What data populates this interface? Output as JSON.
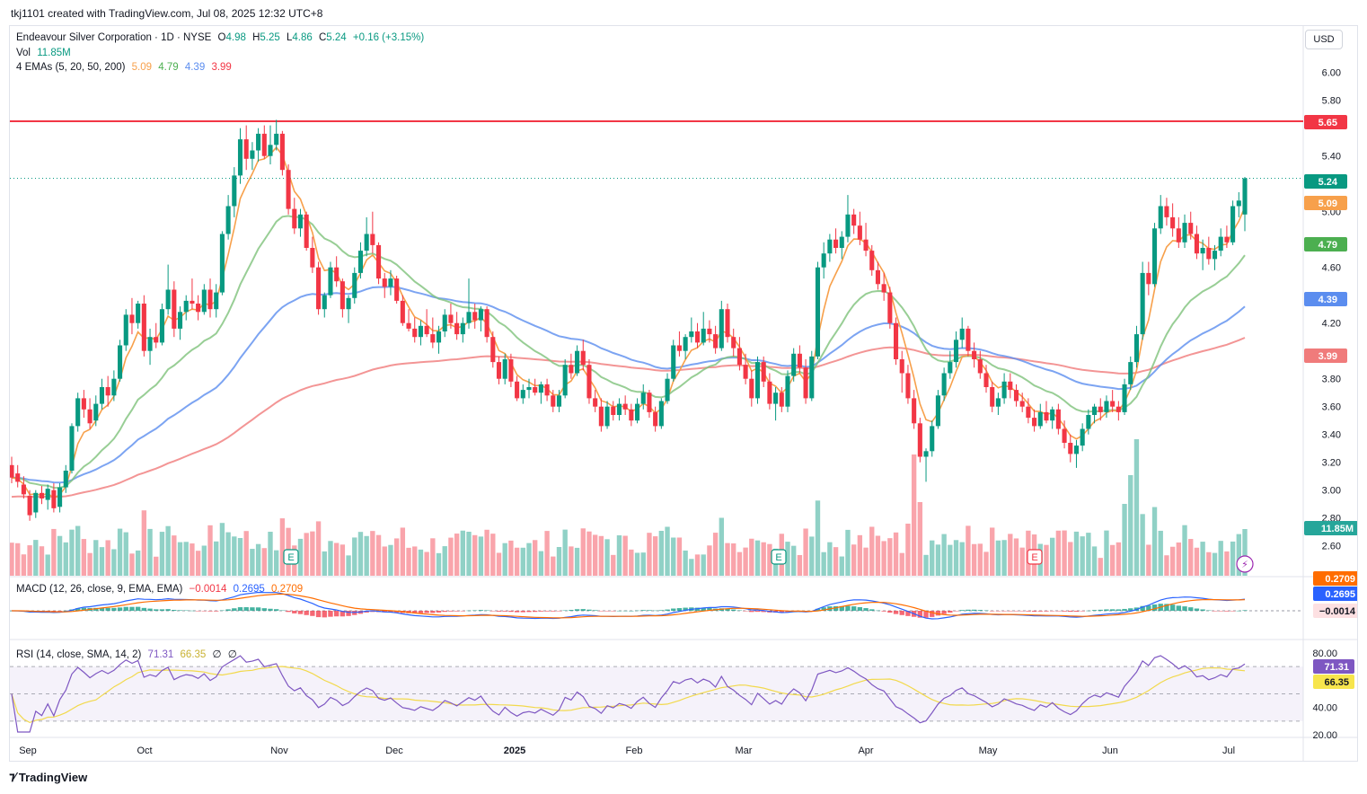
{
  "header": {
    "credit": "tkj1101 created with TradingView.com, Jul 08, 2025 12:32 UTC+8",
    "symbol": "Endeavour Silver Corporation · 1D · NYSE",
    "open_label": "O",
    "open": "4.98",
    "high_label": "H",
    "high": "5.25",
    "low_label": "L",
    "low": "4.86",
    "close_label": "C",
    "close": "5.24",
    "change": "+0.16 (+3.15%)",
    "vol_label": "Vol",
    "vol": "11.85M",
    "ema_label": "4 EMAs (5, 20, 50, 200)",
    "ema5": "5.09",
    "ema20": "4.79",
    "ema50": "4.39",
    "ema200": "3.99",
    "macd_label": "MACD (12, 26, close, 9, EMA, EMA)",
    "macd_hist": "−0.0014",
    "macd_line": "0.2695",
    "macd_signal": "0.2709",
    "rsi_label": "RSI (14, close, SMA, 14, 2)",
    "rsi_value": "71.31",
    "rsi_ma": "66.35",
    "rsi_extra1": "∅",
    "rsi_extra2": "∅"
  },
  "currency_button": "USD",
  "brand": "TradingView",
  "colors": {
    "up": "#089981",
    "down": "#f23645",
    "ema5": "#f7a04b",
    "ema20": "#7ec27a",
    "ema50": "#5b8def",
    "ema200": "#f07b7b",
    "macd": "#2962ff",
    "signal": "#ff6d00",
    "rsi": "#7e57c2",
    "rsi_ma": "#f2d94c",
    "resistance": "#f23645"
  },
  "chart_data": {
    "type": "candlestick",
    "price_axis": {
      "min": 2.4,
      "max": 6.2,
      "ticks": [
        "6.00",
        "5.80",
        "5.40",
        "5.00",
        "4.60",
        "4.20",
        "3.80",
        "3.60",
        "3.40",
        "3.20",
        "3.00",
        "2.80",
        "2.60"
      ]
    },
    "time_axis": [
      "Sep",
      "Oct",
      "Nov",
      "Dec",
      "2025",
      "Feb",
      "Mar",
      "Apr",
      "May",
      "Jun",
      "Jul"
    ],
    "resistance_level": 5.65,
    "last_price": 5.24,
    "price_labels": [
      "5.65",
      "5.24",
      "5.09",
      "4.79",
      "4.39",
      "3.99"
    ],
    "volume_label": "11.85M",
    "earnings_markers": [
      "E",
      "E",
      "E"
    ],
    "macd_labels": [
      "0.2709",
      "0.2695",
      "−0.0014"
    ],
    "rsi_axis": {
      "min": 20,
      "max": 80,
      "ticks": [
        "80.00",
        "40.00",
        "20.00"
      ],
      "overbought": 70,
      "oversold": 30
    },
    "rsi_labels": [
      "71.31",
      "66.35"
    ],
    "ohlc": [
      [
        3.18,
        3.24,
        3.05,
        3.09
      ],
      [
        3.12,
        3.18,
        3.02,
        3.06
      ],
      [
        3.04,
        3.1,
        2.94,
        2.97
      ],
      [
        2.96,
        3.0,
        2.78,
        2.82
      ],
      [
        2.84,
        3.0,
        2.8,
        2.98
      ],
      [
        2.98,
        3.03,
        2.9,
        2.94
      ],
      [
        2.93,
        3.04,
        2.86,
        3.01
      ],
      [
        3.0,
        3.05,
        2.84,
        2.87
      ],
      [
        2.88,
        3.05,
        2.84,
        3.02
      ],
      [
        3.02,
        3.18,
        2.98,
        3.14
      ],
      [
        3.14,
        3.48,
        3.12,
        3.46
      ],
      [
        3.46,
        3.7,
        3.42,
        3.66
      ],
      [
        3.66,
        3.72,
        3.52,
        3.58
      ],
      [
        3.58,
        3.66,
        3.44,
        3.48
      ],
      [
        3.5,
        3.68,
        3.46,
        3.62
      ],
      [
        3.62,
        3.8,
        3.58,
        3.74
      ],
      [
        3.74,
        3.82,
        3.6,
        3.68
      ],
      [
        3.68,
        3.86,
        3.64,
        3.8
      ],
      [
        3.8,
        4.08,
        3.78,
        4.04
      ],
      [
        4.04,
        4.3,
        4.0,
        4.26
      ],
      [
        4.26,
        4.38,
        4.12,
        4.2
      ],
      [
        4.2,
        4.36,
        4.16,
        4.34
      ],
      [
        4.34,
        4.4,
        3.96,
        4.0
      ],
      [
        4.0,
        4.16,
        3.9,
        4.1
      ],
      [
        4.1,
        4.2,
        4.02,
        4.06
      ],
      [
        4.06,
        4.34,
        4.04,
        4.3
      ],
      [
        4.3,
        4.62,
        4.26,
        4.44
      ],
      [
        4.44,
        4.5,
        4.1,
        4.16
      ],
      [
        4.16,
        4.32,
        4.08,
        4.28
      ],
      [
        4.28,
        4.4,
        4.22,
        4.36
      ],
      [
        4.36,
        4.52,
        4.3,
        4.34
      ],
      [
        4.34,
        4.4,
        4.22,
        4.28
      ],
      [
        4.28,
        4.48,
        4.26,
        4.44
      ],
      [
        4.44,
        4.52,
        4.24,
        4.3
      ],
      [
        4.3,
        4.48,
        4.24,
        4.42
      ],
      [
        4.42,
        4.86,
        4.4,
        4.84
      ],
      [
        4.84,
        5.12,
        4.8,
        5.04
      ],
      [
        5.04,
        5.32,
        4.96,
        5.26
      ],
      [
        5.26,
        5.6,
        5.2,
        5.52
      ],
      [
        5.52,
        5.62,
        5.3,
        5.38
      ],
      [
        5.38,
        5.5,
        5.3,
        5.44
      ],
      [
        5.44,
        5.6,
        5.36,
        5.56
      ],
      [
        5.56,
        5.62,
        5.38,
        5.4
      ],
      [
        5.4,
        5.62,
        5.34,
        5.48
      ],
      [
        5.48,
        5.66,
        5.44,
        5.56
      ],
      [
        5.56,
        5.58,
        5.26,
        5.3
      ],
      [
        5.3,
        5.34,
        4.98,
        5.02
      ],
      [
        5.02,
        5.1,
        4.84,
        4.88
      ],
      [
        4.88,
        5.02,
        4.82,
        4.98
      ],
      [
        4.98,
        5.0,
        4.72,
        4.74
      ],
      [
        4.74,
        4.82,
        4.56,
        4.6
      ],
      [
        4.6,
        4.64,
        4.26,
        4.3
      ],
      [
        4.3,
        4.42,
        4.24,
        4.4
      ],
      [
        4.4,
        4.64,
        4.38,
        4.6
      ],
      [
        4.6,
        4.68,
        4.46,
        4.5
      ],
      [
        4.5,
        4.52,
        4.24,
        4.3
      ],
      [
        4.3,
        4.4,
        4.2,
        4.38
      ],
      [
        4.38,
        4.6,
        4.34,
        4.56
      ],
      [
        4.56,
        4.78,
        4.52,
        4.72
      ],
      [
        4.72,
        4.96,
        4.68,
        4.84
      ],
      [
        4.84,
        5.0,
        4.7,
        4.76
      ],
      [
        4.76,
        4.78,
        4.48,
        4.52
      ],
      [
        4.52,
        4.56,
        4.38,
        4.46
      ],
      [
        4.46,
        4.58,
        4.4,
        4.52
      ],
      [
        4.52,
        4.54,
        4.34,
        4.36
      ],
      [
        4.36,
        4.4,
        4.18,
        4.2
      ],
      [
        4.2,
        4.3,
        4.14,
        4.16
      ],
      [
        4.16,
        4.24,
        4.06,
        4.1
      ],
      [
        4.1,
        4.22,
        4.04,
        4.18
      ],
      [
        4.18,
        4.3,
        4.1,
        4.12
      ],
      [
        4.12,
        4.24,
        4.02,
        4.06
      ],
      [
        4.06,
        4.18,
        3.98,
        4.14
      ],
      [
        4.14,
        4.3,
        4.1,
        4.26
      ],
      [
        4.26,
        4.34,
        4.16,
        4.2
      ],
      [
        4.2,
        4.28,
        4.08,
        4.12
      ],
      [
        4.12,
        4.24,
        4.06,
        4.2
      ],
      [
        4.2,
        4.52,
        4.16,
        4.28
      ],
      [
        4.28,
        4.34,
        4.16,
        4.22
      ],
      [
        4.22,
        4.32,
        4.14,
        4.3
      ],
      [
        4.3,
        4.32,
        4.06,
        4.1
      ],
      [
        4.1,
        4.14,
        3.88,
        3.92
      ],
      [
        3.92,
        3.96,
        3.76,
        3.8
      ],
      [
        3.8,
        3.98,
        3.76,
        3.94
      ],
      [
        3.94,
        3.98,
        3.74,
        3.78
      ],
      [
        3.78,
        3.82,
        3.64,
        3.66
      ],
      [
        3.66,
        3.76,
        3.62,
        3.72
      ],
      [
        3.72,
        3.8,
        3.66,
        3.74
      ],
      [
        3.74,
        3.8,
        3.68,
        3.7
      ],
      [
        3.7,
        3.78,
        3.62,
        3.76
      ],
      [
        3.76,
        3.8,
        3.64,
        3.68
      ],
      [
        3.68,
        3.72,
        3.56,
        3.6
      ],
      [
        3.6,
        3.72,
        3.56,
        3.68
      ],
      [
        3.68,
        3.94,
        3.66,
        3.9
      ],
      [
        3.9,
        3.98,
        3.8,
        3.84
      ],
      [
        3.84,
        4.04,
        3.82,
        4.0
      ],
      [
        4.0,
        4.08,
        3.86,
        3.9
      ],
      [
        3.9,
        3.94,
        3.62,
        3.66
      ],
      [
        3.66,
        3.72,
        3.56,
        3.6
      ],
      [
        3.6,
        3.66,
        3.42,
        3.46
      ],
      [
        3.46,
        3.64,
        3.44,
        3.6
      ],
      [
        3.6,
        3.64,
        3.5,
        3.54
      ],
      [
        3.54,
        3.66,
        3.5,
        3.62
      ],
      [
        3.62,
        3.68,
        3.54,
        3.58
      ],
      [
        3.58,
        3.62,
        3.46,
        3.5
      ],
      [
        3.5,
        3.66,
        3.48,
        3.62
      ],
      [
        3.62,
        3.76,
        3.58,
        3.7
      ],
      [
        3.7,
        3.72,
        3.52,
        3.56
      ],
      [
        3.56,
        3.6,
        3.42,
        3.46
      ],
      [
        3.46,
        3.66,
        3.44,
        3.64
      ],
      [
        3.64,
        3.84,
        3.62,
        3.8
      ],
      [
        3.8,
        4.08,
        3.78,
        4.04
      ],
      [
        4.04,
        4.14,
        3.96,
        4.0
      ],
      [
        4.0,
        4.12,
        3.94,
        4.1
      ],
      [
        4.1,
        4.24,
        4.06,
        4.14
      ],
      [
        4.14,
        4.2,
        4.02,
        4.06
      ],
      [
        4.06,
        4.28,
        4.04,
        4.16
      ],
      [
        4.16,
        4.22,
        4.06,
        4.12
      ],
      [
        4.12,
        4.18,
        3.98,
        4.02
      ],
      [
        4.02,
        4.36,
        4.0,
        4.3
      ],
      [
        4.3,
        4.34,
        4.06,
        4.1
      ],
      [
        4.1,
        4.16,
        3.96,
        4.02
      ],
      [
        4.02,
        4.1,
        3.86,
        3.9
      ],
      [
        3.9,
        3.98,
        3.76,
        3.8
      ],
      [
        3.8,
        3.86,
        3.6,
        3.66
      ],
      [
        3.66,
        3.96,
        3.62,
        3.92
      ],
      [
        3.92,
        3.96,
        3.74,
        3.78
      ],
      [
        3.78,
        3.84,
        3.58,
        3.62
      ],
      [
        3.62,
        3.74,
        3.5,
        3.7
      ],
      [
        3.7,
        3.74,
        3.56,
        3.6
      ],
      [
        3.6,
        3.86,
        3.56,
        3.82
      ],
      [
        3.82,
        4.02,
        3.78,
        3.98
      ],
      [
        3.98,
        4.04,
        3.84,
        3.88
      ],
      [
        3.88,
        3.94,
        3.62,
        3.66
      ],
      [
        3.66,
        4.0,
        3.64,
        3.96
      ],
      [
        3.96,
        4.64,
        3.94,
        4.6
      ],
      [
        4.6,
        4.78,
        4.52,
        4.7
      ],
      [
        4.7,
        4.84,
        4.64,
        4.8
      ],
      [
        4.8,
        4.88,
        4.7,
        4.74
      ],
      [
        4.74,
        4.86,
        4.66,
        4.82
      ],
      [
        4.82,
        5.12,
        4.78,
        4.98
      ],
      [
        4.98,
        5.02,
        4.84,
        4.9
      ],
      [
        4.9,
        5.0,
        4.76,
        4.8
      ],
      [
        4.8,
        4.92,
        4.68,
        4.72
      ],
      [
        4.72,
        4.76,
        4.54,
        4.58
      ],
      [
        4.58,
        4.64,
        4.44,
        4.48
      ],
      [
        4.48,
        4.56,
        4.36,
        4.42
      ],
      [
        4.42,
        4.46,
        4.16,
        4.2
      ],
      [
        4.2,
        4.24,
        3.9,
        3.94
      ],
      [
        3.94,
        4.0,
        3.7,
        3.84
      ],
      [
        3.84,
        3.9,
        3.62,
        3.66
      ],
      [
        3.66,
        3.72,
        3.44,
        3.48
      ],
      [
        3.48,
        3.52,
        3.2,
        3.24
      ],
      [
        3.24,
        3.3,
        3.06,
        3.28
      ],
      [
        3.28,
        3.5,
        3.24,
        3.46
      ],
      [
        3.46,
        3.72,
        3.44,
        3.68
      ],
      [
        3.68,
        3.88,
        3.64,
        3.84
      ],
      [
        3.84,
        4.0,
        3.8,
        3.92
      ],
      [
        3.92,
        4.14,
        3.88,
        4.08
      ],
      [
        4.08,
        4.24,
        4.02,
        4.16
      ],
      [
        4.16,
        4.18,
        3.96,
        4.0
      ],
      [
        4.0,
        4.06,
        3.88,
        3.94
      ],
      [
        3.94,
        4.0,
        3.8,
        3.84
      ],
      [
        3.84,
        3.9,
        3.7,
        3.74
      ],
      [
        3.74,
        3.78,
        3.56,
        3.6
      ],
      [
        3.6,
        3.7,
        3.54,
        3.66
      ],
      [
        3.66,
        3.84,
        3.62,
        3.78
      ],
      [
        3.78,
        3.84,
        3.66,
        3.72
      ],
      [
        3.72,
        3.76,
        3.6,
        3.64
      ],
      [
        3.64,
        3.7,
        3.56,
        3.6
      ],
      [
        3.6,
        3.66,
        3.48,
        3.52
      ],
      [
        3.52,
        3.58,
        3.42,
        3.46
      ],
      [
        3.46,
        3.62,
        3.44,
        3.56
      ],
      [
        3.56,
        3.64,
        3.48,
        3.5
      ],
      [
        3.5,
        3.6,
        3.44,
        3.58
      ],
      [
        3.58,
        3.62,
        3.4,
        3.44
      ],
      [
        3.44,
        3.5,
        3.3,
        3.34
      ],
      [
        3.34,
        3.4,
        3.2,
        3.26
      ],
      [
        3.26,
        3.36,
        3.16,
        3.32
      ],
      [
        3.32,
        3.48,
        3.28,
        3.44
      ],
      [
        3.44,
        3.58,
        3.4,
        3.54
      ],
      [
        3.54,
        3.62,
        3.48,
        3.6
      ],
      [
        3.6,
        3.66,
        3.5,
        3.56
      ],
      [
        3.56,
        3.68,
        3.52,
        3.64
      ],
      [
        3.64,
        3.72,
        3.56,
        3.6
      ],
      [
        3.6,
        3.64,
        3.5,
        3.56
      ],
      [
        3.56,
        3.8,
        3.54,
        3.76
      ],
      [
        3.76,
        3.96,
        3.72,
        3.92
      ],
      [
        3.92,
        4.18,
        3.88,
        4.12
      ],
      [
        4.12,
        4.64,
        4.08,
        4.56
      ],
      [
        4.56,
        4.64,
        4.4,
        4.48
      ],
      [
        4.48,
        4.92,
        4.46,
        4.88
      ],
      [
        4.88,
        5.12,
        4.84,
        5.04
      ],
      [
        5.04,
        5.1,
        4.9,
        4.96
      ],
      [
        4.96,
        5.06,
        4.82,
        4.88
      ],
      [
        4.88,
        4.96,
        4.74,
        4.78
      ],
      [
        4.78,
        4.98,
        4.74,
        4.92
      ],
      [
        4.92,
        5.0,
        4.8,
        4.84
      ],
      [
        4.84,
        4.9,
        4.66,
        4.7
      ],
      [
        4.7,
        4.8,
        4.58,
        4.74
      ],
      [
        4.74,
        4.82,
        4.62,
        4.66
      ],
      [
        4.66,
        4.76,
        4.58,
        4.72
      ],
      [
        4.72,
        4.88,
        4.68,
        4.82
      ],
      [
        4.82,
        4.9,
        4.74,
        4.78
      ],
      [
        4.78,
        5.08,
        4.76,
        5.04
      ],
      [
        5.04,
        5.14,
        4.96,
        5.08
      ],
      [
        4.98,
        5.25,
        4.86,
        5.24
      ]
    ]
  }
}
